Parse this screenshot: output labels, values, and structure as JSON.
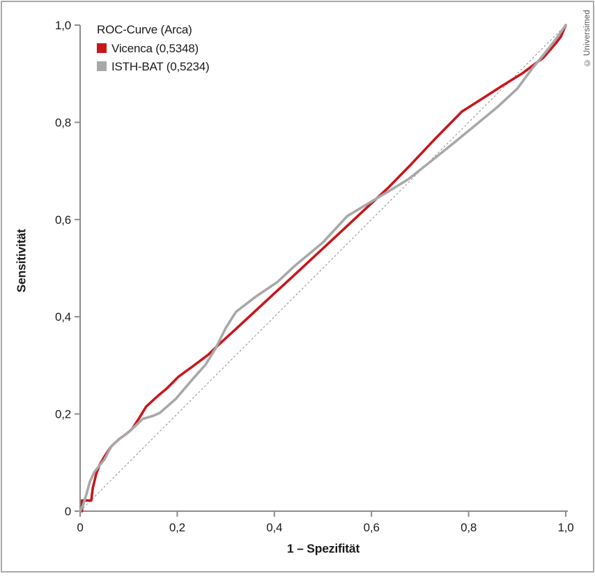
{
  "figure": {
    "credit": "© Universimed"
  },
  "legend": {
    "title": "ROC-Curve (Arca)",
    "items": [
      {
        "name": "Vicenca",
        "label": "Vicenca (0,5348)",
        "color": "#c8161c"
      },
      {
        "name": "ISTH-BAT",
        "label": "ISTH-BAT (0,5234)",
        "color": "#a8a8a8"
      }
    ]
  },
  "chart_data": {
    "type": "line",
    "title": "ROC-Curve (Arca)",
    "xlabel": "1 – Spezifität",
    "ylabel": "Sensitivität",
    "xlim": [
      0,
      1
    ],
    "ylim": [
      0,
      1
    ],
    "grid": false,
    "legend_position": "top-left",
    "axis_color": "#8c8c8c",
    "tick_label_color": "#1a1a1a",
    "x_ticks": [
      "0",
      "0,2",
      "0,4",
      "0,6",
      "0,8",
      "1,0"
    ],
    "x_tick_values": [
      0,
      0.2,
      0.4,
      0.6,
      0.8,
      1.0
    ],
    "y_ticks": [
      "0",
      "0,2",
      "0,4",
      "0,6",
      "0,8",
      "1,0"
    ],
    "y_tick_values": [
      0,
      0.2,
      0.4,
      0.6,
      0.8,
      1.0
    ],
    "reference_line": {
      "name": "diagonal-chance-line",
      "style": "dashed",
      "color": "#8c8c8c",
      "from": [
        0,
        0
      ],
      "to": [
        1,
        1
      ]
    },
    "series": [
      {
        "name": "Vicenca",
        "auc": "0,5348",
        "color": "#c8161c",
        "points": [
          [
            0,
            0
          ],
          [
            0.004,
            0
          ],
          [
            0.004,
            0.022
          ],
          [
            0.023,
            0.022
          ],
          [
            0.026,
            0.047
          ],
          [
            0.033,
            0.076
          ],
          [
            0.04,
            0.095
          ],
          [
            0.05,
            0.112
          ],
          [
            0.064,
            0.133
          ],
          [
            0.08,
            0.148
          ],
          [
            0.095,
            0.159
          ],
          [
            0.107,
            0.169
          ],
          [
            0.122,
            0.192
          ],
          [
            0.136,
            0.215
          ],
          [
            0.16,
            0.237
          ],
          [
            0.179,
            0.253
          ],
          [
            0.203,
            0.277
          ],
          [
            0.232,
            0.298
          ],
          [
            0.264,
            0.322
          ],
          [
            0.285,
            0.342
          ],
          [
            0.32,
            0.374
          ],
          [
            0.36,
            0.411
          ],
          [
            0.4,
            0.448
          ],
          [
            0.436,
            0.481
          ],
          [
            0.48,
            0.522
          ],
          [
            0.52,
            0.559
          ],
          [
            0.55,
            0.587
          ],
          [
            0.593,
            0.627
          ],
          [
            0.633,
            0.664
          ],
          [
            0.68,
            0.712
          ],
          [
            0.73,
            0.765
          ],
          [
            0.786,
            0.822
          ],
          [
            0.83,
            0.85
          ],
          [
            0.869,
            0.875
          ],
          [
            0.911,
            0.901
          ],
          [
            0.954,
            0.933
          ],
          [
            0.979,
            0.962
          ],
          [
            0.99,
            0.976
          ],
          [
            1,
            1
          ]
        ]
      },
      {
        "name": "ISTH-BAT",
        "auc": "0,5234",
        "color": "#a8a8a8",
        "points": [
          [
            0,
            0
          ],
          [
            0.006,
            0.012
          ],
          [
            0.013,
            0.035
          ],
          [
            0.02,
            0.06
          ],
          [
            0.029,
            0.08
          ],
          [
            0.039,
            0.093
          ],
          [
            0.05,
            0.106
          ],
          [
            0.064,
            0.133
          ],
          [
            0.08,
            0.148
          ],
          [
            0.095,
            0.159
          ],
          [
            0.107,
            0.169
          ],
          [
            0.129,
            0.19
          ],
          [
            0.15,
            0.196
          ],
          [
            0.164,
            0.202
          ],
          [
            0.197,
            0.231
          ],
          [
            0.233,
            0.273
          ],
          [
            0.258,
            0.301
          ],
          [
            0.279,
            0.335
          ],
          [
            0.3,
            0.377
          ],
          [
            0.321,
            0.41
          ],
          [
            0.36,
            0.44
          ],
          [
            0.407,
            0.472
          ],
          [
            0.44,
            0.503
          ],
          [
            0.5,
            0.553
          ],
          [
            0.55,
            0.607
          ],
          [
            0.6,
            0.637
          ],
          [
            0.64,
            0.661
          ],
          [
            0.676,
            0.683
          ],
          [
            0.72,
            0.718
          ],
          [
            0.77,
            0.758
          ],
          [
            0.82,
            0.799
          ],
          [
            0.86,
            0.832
          ],
          [
            0.9,
            0.869
          ],
          [
            0.929,
            0.908
          ],
          [
            0.964,
            0.951
          ],
          [
            0.981,
            0.973
          ],
          [
            1,
            1
          ]
        ]
      }
    ]
  }
}
